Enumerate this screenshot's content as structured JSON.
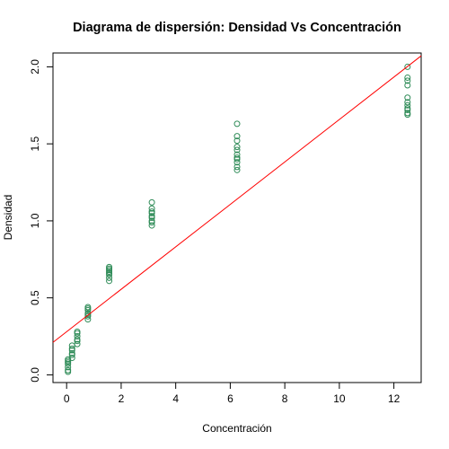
{
  "chart_data": {
    "type": "scatter",
    "title": "Diagrama de dispersión: Densidad Vs Concentración",
    "xlabel": "Concentración",
    "ylabel": "Densidad",
    "xlim": [
      -0.5,
      13.0
    ],
    "ylim": [
      -0.05,
      2.09
    ],
    "x_ticks": [
      0,
      2,
      4,
      6,
      8,
      10,
      12
    ],
    "x_tick_labels": [
      "0",
      "2",
      "4",
      "6",
      "8",
      "10",
      "12"
    ],
    "y_ticks": [
      0.0,
      0.5,
      1.0,
      1.5,
      2.0
    ],
    "y_tick_labels": [
      "0.0",
      "0.5",
      "1.0",
      "1.5",
      "2.0"
    ],
    "grid": false,
    "legend": "none",
    "point_color": "#2e8b57",
    "line_color": "#ff0000",
    "points": [
      {
        "x": 0.05,
        "y": 0.02
      },
      {
        "x": 0.05,
        "y": 0.03
      },
      {
        "x": 0.05,
        "y": 0.05
      },
      {
        "x": 0.05,
        "y": 0.07
      },
      {
        "x": 0.05,
        "y": 0.08
      },
      {
        "x": 0.05,
        "y": 0.09
      },
      {
        "x": 0.05,
        "y": 0.1
      },
      {
        "x": 0.2,
        "y": 0.11
      },
      {
        "x": 0.2,
        "y": 0.13
      },
      {
        "x": 0.2,
        "y": 0.14
      },
      {
        "x": 0.2,
        "y": 0.16
      },
      {
        "x": 0.2,
        "y": 0.17
      },
      {
        "x": 0.2,
        "y": 0.19
      },
      {
        "x": 0.39,
        "y": 0.2
      },
      {
        "x": 0.39,
        "y": 0.22
      },
      {
        "x": 0.39,
        "y": 0.23
      },
      {
        "x": 0.39,
        "y": 0.25
      },
      {
        "x": 0.39,
        "y": 0.27
      },
      {
        "x": 0.39,
        "y": 0.28
      },
      {
        "x": 0.78,
        "y": 0.36
      },
      {
        "x": 0.78,
        "y": 0.38
      },
      {
        "x": 0.78,
        "y": 0.39
      },
      {
        "x": 0.78,
        "y": 0.4
      },
      {
        "x": 0.78,
        "y": 0.42
      },
      {
        "x": 0.78,
        "y": 0.43
      },
      {
        "x": 0.78,
        "y": 0.44
      },
      {
        "x": 1.56,
        "y": 0.61
      },
      {
        "x": 1.56,
        "y": 0.63
      },
      {
        "x": 1.56,
        "y": 0.65
      },
      {
        "x": 1.56,
        "y": 0.66
      },
      {
        "x": 1.56,
        "y": 0.67
      },
      {
        "x": 1.56,
        "y": 0.68
      },
      {
        "x": 1.56,
        "y": 0.69
      },
      {
        "x": 1.56,
        "y": 0.7
      },
      {
        "x": 3.125,
        "y": 0.97
      },
      {
        "x": 3.125,
        "y": 0.99
      },
      {
        "x": 3.125,
        "y": 1.0
      },
      {
        "x": 3.125,
        "y": 1.02
      },
      {
        "x": 3.125,
        "y": 1.03
      },
      {
        "x": 3.125,
        "y": 1.05
      },
      {
        "x": 3.125,
        "y": 1.06
      },
      {
        "x": 3.125,
        "y": 1.08
      },
      {
        "x": 3.125,
        "y": 1.12
      },
      {
        "x": 6.25,
        "y": 1.33
      },
      {
        "x": 6.25,
        "y": 1.35
      },
      {
        "x": 6.25,
        "y": 1.38
      },
      {
        "x": 6.25,
        "y": 1.4
      },
      {
        "x": 6.25,
        "y": 1.41
      },
      {
        "x": 6.25,
        "y": 1.43
      },
      {
        "x": 6.25,
        "y": 1.46
      },
      {
        "x": 6.25,
        "y": 1.48
      },
      {
        "x": 6.25,
        "y": 1.52
      },
      {
        "x": 6.25,
        "y": 1.55
      },
      {
        "x": 6.25,
        "y": 1.63
      },
      {
        "x": 12.5,
        "y": 1.69
      },
      {
        "x": 12.5,
        "y": 1.7
      },
      {
        "x": 12.5,
        "y": 1.72
      },
      {
        "x": 12.5,
        "y": 1.73
      },
      {
        "x": 12.5,
        "y": 1.75
      },
      {
        "x": 12.5,
        "y": 1.77
      },
      {
        "x": 12.5,
        "y": 1.8
      },
      {
        "x": 12.5,
        "y": 1.88
      },
      {
        "x": 12.5,
        "y": 1.91
      },
      {
        "x": 12.5,
        "y": 1.93
      },
      {
        "x": 12.5,
        "y": 2.0
      }
    ],
    "regression_line": {
      "intercept": 0.28,
      "slope": 0.1378
    }
  }
}
